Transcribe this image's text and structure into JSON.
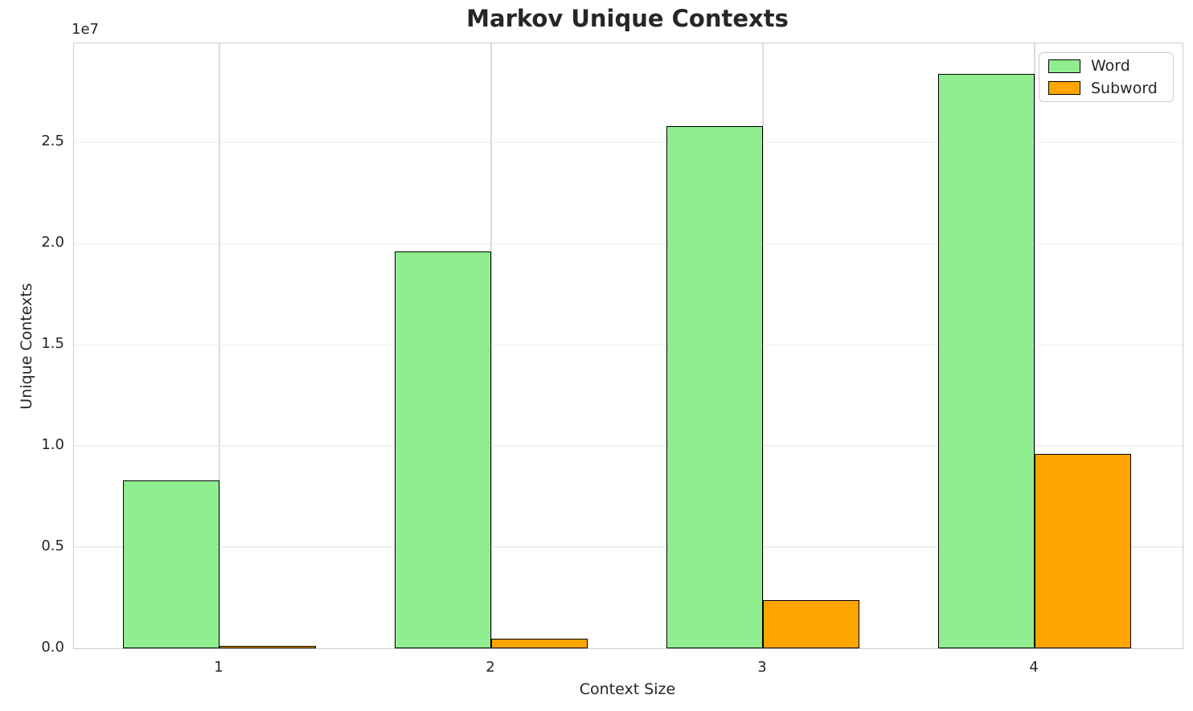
{
  "chart_data": {
    "type": "bar",
    "title": "Markov Unique Contexts",
    "xlabel": "Context Size",
    "ylabel": "Unique Contexts",
    "y_offset_label": "1e7",
    "categories": [
      "1",
      "2",
      "3",
      "4"
    ],
    "series": [
      {
        "name": "Word",
        "color": "#90EE90",
        "values": [
          8300000,
          19600000,
          25800000,
          28400000
        ]
      },
      {
        "name": "Subword",
        "color": "#FFA500",
        "values": [
          50000,
          480000,
          2400000,
          9600000
        ]
      }
    ],
    "bar_edge_color": "#000000",
    "ylim": [
      0,
      29900000
    ],
    "y_ticks": [
      "0.0",
      "0.5",
      "1.0",
      "1.5",
      "2.0",
      "2.5"
    ],
    "y_tick_values": [
      0,
      5000000,
      10000000,
      15000000,
      20000000,
      25000000
    ],
    "grid": true,
    "legend_position": "upper right",
    "colors": {
      "text": "#262626",
      "grid_h": "#efefef",
      "grid_v": "#dbdbdb",
      "spine": "#cccccc",
      "background": "#ffffff"
    }
  }
}
